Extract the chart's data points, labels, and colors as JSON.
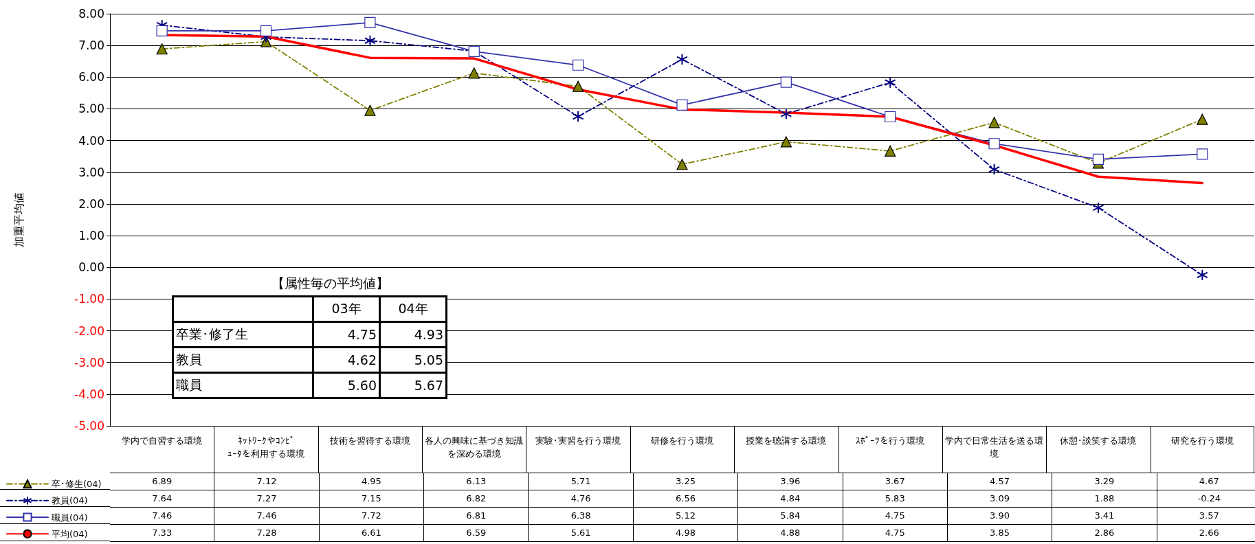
{
  "chart_data": {
    "type": "line",
    "ylabel": "加重平均値",
    "categories": [
      "学内で自習する環境",
      "ﾈｯﾄﾜｰｸやｺﾝﾋﾟｭｰﾀを利用する環境",
      "技術を習得する環境",
      "各人の興味に基づき知識を深める環境",
      "実験･実習を行う環境",
      "研修を行う環境",
      "授業を聴講する環境",
      "ｽﾎﾟｰﾂを行う環境",
      "学内で日常生活を送る環境",
      "休憩･談笑する環境",
      "研究を行う環境"
    ],
    "series": [
      {
        "name": "卒･修生(04)",
        "color": "#808000",
        "marker": "triangle",
        "line_style": "dashed",
        "values": [
          6.89,
          7.12,
          4.95,
          6.13,
          5.71,
          3.25,
          3.96,
          3.67,
          4.57,
          3.29,
          4.67
        ],
        "value_labels": [
          "6.89",
          "7.12",
          "4.95",
          "6.13",
          "5.71",
          "3.25",
          "3.96",
          "3.67",
          "4.57",
          "3.29",
          "4.67"
        ]
      },
      {
        "name": "教員(04)",
        "color": "#000080",
        "marker": "cross",
        "line_style": "dashed",
        "values": [
          7.64,
          7.27,
          7.15,
          6.82,
          4.76,
          6.56,
          4.84,
          5.83,
          3.09,
          1.88,
          -0.24
        ],
        "value_labels": [
          "7.64",
          "7.27",
          "7.15",
          "6.82",
          "4.76",
          "6.56",
          "4.84",
          "5.83",
          "3.09",
          "1.88",
          "-0.24"
        ]
      },
      {
        "name": "職員(04)",
        "color": "#3333aa",
        "marker": "square",
        "line_style": "solid",
        "values": [
          7.46,
          7.46,
          7.72,
          6.81,
          6.38,
          5.12,
          5.84,
          4.75,
          3.9,
          3.41,
          3.57
        ],
        "value_labels": [
          "7.46",
          "7.46",
          "7.72",
          "6.81",
          "6.38",
          "5.12",
          "5.84",
          "4.75",
          "3.90",
          "3.41",
          "3.57"
        ]
      },
      {
        "name": "平均(04)",
        "color": "#ff0000",
        "marker": "none",
        "line_style": "solid",
        "values": [
          7.33,
          7.28,
          6.61,
          6.59,
          5.61,
          4.98,
          4.88,
          4.75,
          3.85,
          2.86,
          2.66
        ],
        "value_labels": [
          "7.33",
          "7.28",
          "6.61",
          "6.59",
          "5.61",
          "4.98",
          "4.88",
          "4.75",
          "3.85",
          "2.86",
          "2.66"
        ]
      }
    ],
    "ylim": [
      -5,
      8
    ],
    "yticks": [
      {
        "value": -5,
        "label": "-5.00"
      },
      {
        "value": -4,
        "label": "-4.00"
      },
      {
        "value": -3,
        "label": "-3.00"
      },
      {
        "value": -2,
        "label": "-2.00"
      },
      {
        "value": -1,
        "label": "-1.00"
      },
      {
        "value": 0,
        "label": "0.00"
      },
      {
        "value": 1,
        "label": "1.00"
      },
      {
        "value": 2,
        "label": "2.00"
      },
      {
        "value": 3,
        "label": "3.00"
      },
      {
        "value": 4,
        "label": "4.00"
      },
      {
        "value": 5,
        "label": "5.00"
      },
      {
        "value": 6,
        "label": "6.00"
      },
      {
        "value": 7,
        "label": "7.00"
      },
      {
        "value": 8,
        "label": "8.00"
      }
    ],
    "grid": "y",
    "legend": "bottom left",
    "annotations": [
      "【属性毎の平均値】",
      "03年",
      "04年",
      "卒業･修了生",
      "4.75",
      "4.93",
      "教員",
      "4.62",
      "5.05",
      "職員",
      "5.60",
      "5.67"
    ]
  }
}
